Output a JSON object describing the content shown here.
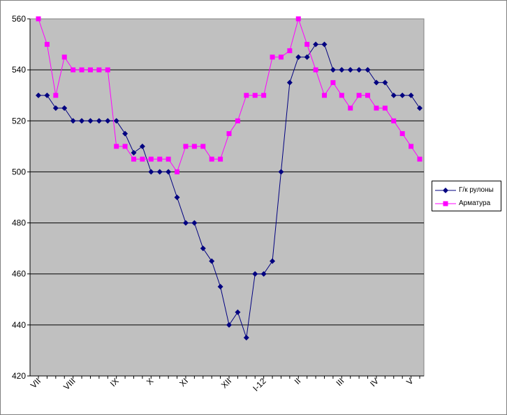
{
  "chart_data": {
    "type": "line",
    "title": "",
    "xlabel": "",
    "ylabel": "",
    "ylim": [
      420,
      560
    ],
    "yticks": [
      420,
      440,
      460,
      480,
      500,
      520,
      540,
      560
    ],
    "grid": true,
    "plot_background": "#c0c0c0",
    "legend_position": "right",
    "x_tick_labels": [
      {
        "index": 0,
        "label": "VII"
      },
      {
        "index": 4,
        "label": "VIII"
      },
      {
        "index": 9,
        "label": "IX"
      },
      {
        "index": 13,
        "label": "X"
      },
      {
        "index": 17,
        "label": "XI"
      },
      {
        "index": 22,
        "label": "XII"
      },
      {
        "index": 26,
        "label": "I-12"
      },
      {
        "index": 30,
        "label": "II"
      },
      {
        "index": 35,
        "label": "III"
      },
      {
        "index": 39,
        "label": "IV"
      },
      {
        "index": 43,
        "label": "V"
      }
    ],
    "n_points": 45,
    "series": [
      {
        "name": "Г/к рулоны",
        "color": "#000080",
        "marker": "diamond",
        "values": [
          530,
          530,
          525,
          525,
          520,
          520,
          520,
          520,
          520,
          520,
          515,
          507.5,
          510,
          500,
          500,
          500,
          490,
          480,
          480,
          470,
          465,
          455,
          440,
          445,
          435,
          460,
          460,
          465,
          500,
          535,
          545,
          545,
          550,
          550,
          540,
          540,
          540,
          540,
          540,
          535,
          535,
          530,
          530,
          530,
          525
        ]
      },
      {
        "name": "Арматура",
        "color": "#ff00ff",
        "marker": "square",
        "values": [
          560,
          550,
          530,
          545,
          540,
          540,
          540,
          540,
          540,
          510,
          510,
          505,
          505,
          505,
          505,
          505,
          500,
          510,
          510,
          510,
          505,
          505,
          515,
          520,
          530,
          530,
          530,
          545,
          545,
          547.5,
          560,
          550,
          540,
          530,
          535,
          530,
          525,
          530,
          530,
          525,
          525,
          520,
          515,
          510,
          505
        ]
      }
    ]
  }
}
